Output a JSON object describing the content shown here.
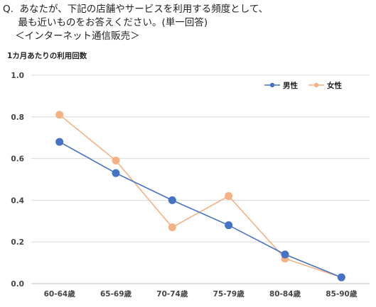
{
  "question": {
    "line1": "Q.  あなたが、下記の店舗やサービスを利用する頻度として、",
    "line2": "     最も近いものをお答えください。(単一回答)",
    "line3": "    ＜インターネット通信販売＞"
  },
  "chart_data": {
    "type": "line",
    "ylabel": "1カ月あたりの利用回数",
    "categories": [
      "60-64歳",
      "65-69歳",
      "70-74歳",
      "75-79歳",
      "80-84歳",
      "85-90歳"
    ],
    "ylim": [
      0,
      1.0
    ],
    "yticks": [
      "0.0",
      "0.2",
      "0.4",
      "0.6",
      "0.8",
      "1.0"
    ],
    "grid": true,
    "legend_position": "top-right",
    "series": [
      {
        "name": "男性",
        "color": "#4472C4",
        "values": [
          0.68,
          0.53,
          0.4,
          0.28,
          0.14,
          0.03
        ]
      },
      {
        "name": "女性",
        "color": "#F4B183",
        "values": [
          0.81,
          0.59,
          0.27,
          0.42,
          0.12,
          0.03
        ]
      }
    ]
  }
}
